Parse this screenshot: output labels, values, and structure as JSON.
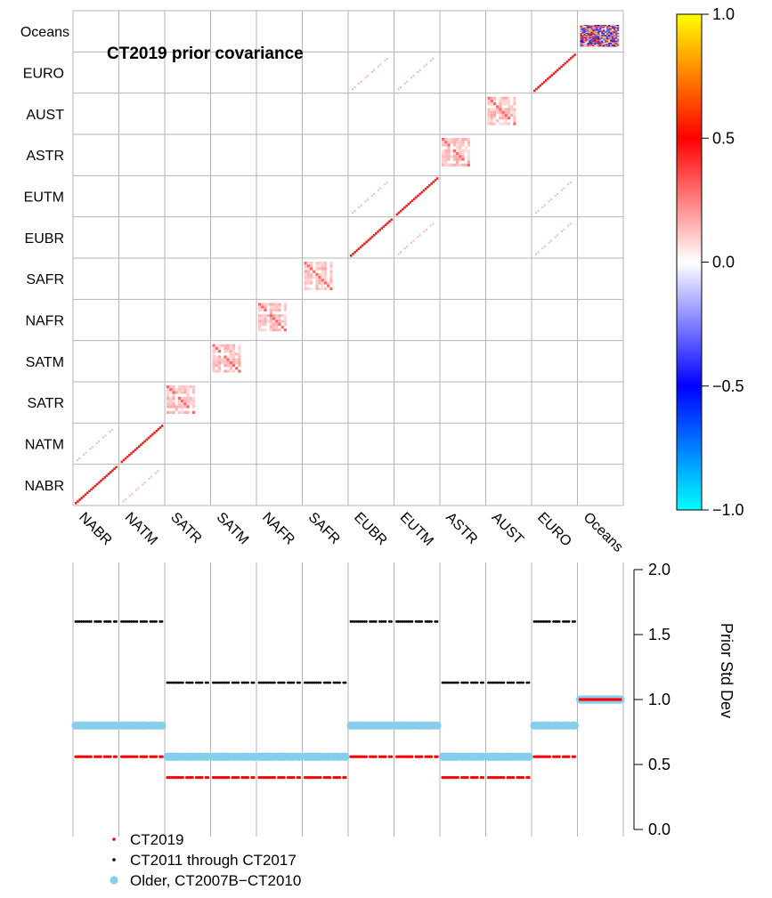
{
  "chart_data": [
    {
      "type": "heatmap",
      "title": "CT2019 prior covariance",
      "regions": [
        "NABR",
        "NATM",
        "SATR",
        "SATM",
        "NAFR",
        "SAFR",
        "EUBR",
        "EUTM",
        "ASTR",
        "AUST",
        "EURO",
        "Oceans"
      ],
      "blocks": [
        {
          "region": "NABR",
          "pattern": "diag",
          "value": 0.8
        },
        {
          "region": "NATM",
          "pattern": "diag",
          "value": 0.8
        },
        {
          "region": "SATR",
          "pattern": "block",
          "value": 0.15
        },
        {
          "region": "SATM",
          "pattern": "block",
          "value": 0.15
        },
        {
          "region": "NAFR",
          "pattern": "block",
          "value": 0.15
        },
        {
          "region": "SAFR",
          "pattern": "block",
          "value": 0.15
        },
        {
          "region": "EUBR",
          "pattern": "diag",
          "value": 0.8
        },
        {
          "region": "EUTM",
          "pattern": "diag",
          "value": 0.8
        },
        {
          "region": "ASTR",
          "pattern": "block",
          "value": 0.15
        },
        {
          "region": "AUST",
          "pattern": "block",
          "value": 0.15
        },
        {
          "region": "EURO",
          "pattern": "diag",
          "value": 0.8
        },
        {
          "region": "Oceans",
          "pattern": "dense",
          "value": 0.5
        }
      ],
      "offdiag": [
        {
          "row": "NABR",
          "col": "NATM"
        },
        {
          "row": "EUBR",
          "col": "EUTM"
        },
        {
          "row": "EUBR",
          "col": "EURO"
        },
        {
          "row": "EUTM",
          "col": "EURO"
        }
      ],
      "colorbar": {
        "range": [
          -1.0,
          1.0
        ],
        "ticks": [
          1.0,
          0.5,
          0.0,
          -0.5,
          -1.0
        ],
        "tick_labels": [
          "1.0",
          "0.5",
          "0.0",
          "−0.5",
          "−1.0"
        ],
        "colors": [
          "#00ffff",
          "#0000ff",
          "#ffffff",
          "#ff0000",
          "#ffff00"
        ]
      }
    },
    {
      "type": "scatter",
      "ylabel": "Prior Std Dev",
      "ylim": [
        0.0,
        2.0
      ],
      "yticks": [
        0.0,
        0.5,
        1.0,
        1.5,
        2.0
      ],
      "ytick_labels": [
        "0.0",
        "0.5",
        "1.0",
        "1.5",
        "2.0"
      ],
      "categories": [
        "NABR",
        "NATM",
        "SATR",
        "SATM",
        "NAFR",
        "SAFR",
        "EUBR",
        "EUTM",
        "ASTR",
        "AUST",
        "EURO",
        "Oceans"
      ],
      "series": [
        {
          "name": "CT2019",
          "color": "#ff0000",
          "values": [
            0.56,
            0.56,
            0.4,
            0.4,
            0.4,
            0.4,
            0.56,
            0.56,
            0.4,
            0.4,
            0.56,
            1.0
          ]
        },
        {
          "name": "CT2011 through CT2017",
          "color": "#000000",
          "values": [
            1.6,
            1.6,
            1.13,
            1.13,
            1.13,
            1.13,
            1.6,
            1.6,
            1.13,
            1.13,
            1.6,
            1.0
          ]
        },
        {
          "name": "Older, CT2007B−CT2010",
          "color": "#87ceeb",
          "values": [
            0.8,
            0.8,
            0.56,
            0.56,
            0.56,
            0.56,
            0.8,
            0.8,
            0.56,
            0.56,
            0.8,
            1.0
          ]
        }
      ]
    }
  ]
}
